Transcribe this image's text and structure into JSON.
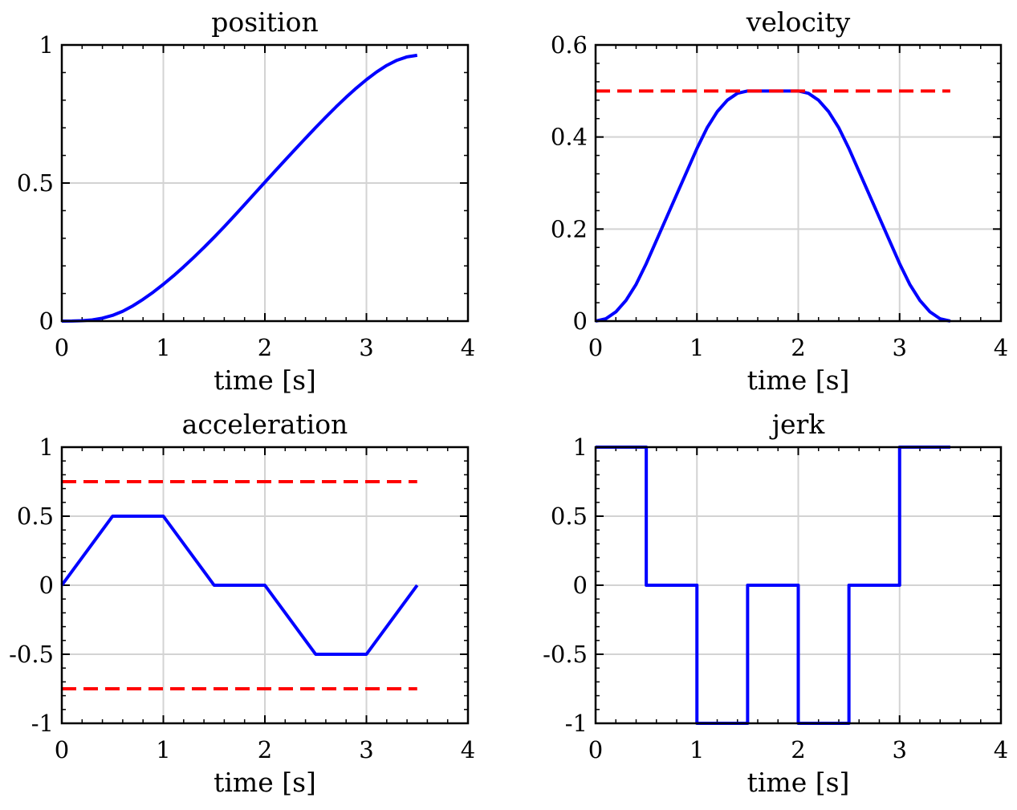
{
  "figure": {
    "colors": {
      "curve": "#0000ff",
      "limit": "#ff0000",
      "grid": "#d3d3d3",
      "axes": "#000000"
    }
  },
  "chart_data": [
    {
      "type": "line",
      "title": "position",
      "xlabel": "time [s]",
      "ylabel": "",
      "xlim": [
        0,
        4
      ],
      "ylim": [
        0,
        1
      ],
      "xticks": [
        0,
        1,
        2,
        3,
        4
      ],
      "xtick_labels": [
        "0",
        "1",
        "2",
        "3",
        "4"
      ],
      "yticks": [
        0,
        0.5,
        1
      ],
      "ytick_labels": [
        "0",
        "0.5",
        "1"
      ],
      "grid": true,
      "series": [
        {
          "name": "position",
          "style": "solid",
          "color": "#0000ff",
          "x": [
            0,
            0.1,
            0.2,
            0.3,
            0.4,
            0.5,
            0.6,
            0.7,
            0.8,
            0.9,
            1.0,
            1.1,
            1.2,
            1.3,
            1.4,
            1.5,
            1.6,
            1.7,
            1.8,
            1.9,
            2.0,
            2.1,
            2.2,
            2.3,
            2.4,
            2.5,
            2.6,
            2.7,
            2.8,
            2.9,
            3.0,
            3.1,
            3.2,
            3.3,
            3.4,
            3.5
          ],
          "y": [
            0,
            0.0002,
            0.0013,
            0.0045,
            0.0107,
            0.0208,
            0.0357,
            0.0553,
            0.0787,
            0.1048,
            0.1333,
            0.164,
            0.1967,
            0.231,
            0.2667,
            0.3036,
            0.3419,
            0.3814,
            0.4218,
            0.4624,
            0.503,
            0.5433,
            0.5833,
            0.6229,
            0.6621,
            0.7008,
            0.7387,
            0.7755,
            0.8106,
            0.8436,
            0.8743,
            0.9021,
            0.9259,
            0.9445,
            0.9569,
            0.9625
          ]
        }
      ]
    },
    {
      "type": "line",
      "title": "velocity",
      "xlabel": "time [s]",
      "ylabel": "",
      "xlim": [
        0,
        4
      ],
      "ylim": [
        0,
        0.6
      ],
      "xticks": [
        0,
        1,
        2,
        3,
        4
      ],
      "xtick_labels": [
        "0",
        "1",
        "2",
        "3",
        "4"
      ],
      "yticks": [
        0,
        0.2,
        0.4,
        0.6
      ],
      "ytick_labels": [
        "0",
        "0.2",
        "0.4",
        "0.6"
      ],
      "grid": true,
      "series": [
        {
          "name": "velocity",
          "style": "solid",
          "color": "#0000ff",
          "x": [
            0,
            0.1,
            0.2,
            0.3,
            0.4,
            0.5,
            0.6,
            0.7,
            0.8,
            0.9,
            1.0,
            1.1,
            1.2,
            1.3,
            1.4,
            1.5,
            2.0,
            2.1,
            2.2,
            2.3,
            2.4,
            2.5,
            2.6,
            2.7,
            2.8,
            2.9,
            3.0,
            3.1,
            3.2,
            3.3,
            3.4,
            3.5
          ],
          "y": [
            0,
            0.005,
            0.02,
            0.045,
            0.08,
            0.125,
            0.175,
            0.225,
            0.275,
            0.325,
            0.375,
            0.42,
            0.455,
            0.48,
            0.495,
            0.5,
            0.5,
            0.495,
            0.48,
            0.455,
            0.42,
            0.375,
            0.325,
            0.275,
            0.225,
            0.175,
            0.125,
            0.08,
            0.045,
            0.02,
            0.005,
            0
          ]
        },
        {
          "name": "velocity limit",
          "style": "dashed",
          "color": "#ff0000",
          "x": [
            0,
            3.5
          ],
          "y": [
            0.5,
            0.5
          ]
        }
      ]
    },
    {
      "type": "line",
      "title": "acceleration",
      "xlabel": "time [s]",
      "ylabel": "",
      "xlim": [
        0,
        4
      ],
      "ylim": [
        -1,
        1
      ],
      "xticks": [
        0,
        1,
        2,
        3,
        4
      ],
      "xtick_labels": [
        "0",
        "1",
        "2",
        "3",
        "4"
      ],
      "yticks": [
        -1,
        -0.5,
        0,
        0.5,
        1
      ],
      "ytick_labels": [
        "-1",
        "-0.5",
        "0",
        "0.5",
        "1"
      ],
      "grid": true,
      "series": [
        {
          "name": "acceleration",
          "style": "solid",
          "color": "#0000ff",
          "x": [
            0,
            0.5,
            1.0,
            1.5,
            2.0,
            2.5,
            3.0,
            3.5
          ],
          "y": [
            0,
            0.5,
            0.5,
            0,
            0,
            -0.5,
            -0.5,
            0
          ]
        },
        {
          "name": "acceleration upper limit",
          "style": "dashed",
          "color": "#ff0000",
          "x": [
            0,
            3.5
          ],
          "y": [
            0.75,
            0.75
          ]
        },
        {
          "name": "acceleration lower limit",
          "style": "dashed",
          "color": "#ff0000",
          "x": [
            0,
            3.5
          ],
          "y": [
            -0.75,
            -0.75
          ]
        }
      ]
    },
    {
      "type": "line",
      "title": "jerk",
      "xlabel": "time [s]",
      "ylabel": "",
      "xlim": [
        0,
        4
      ],
      "ylim": [
        -1,
        1
      ],
      "xticks": [
        0,
        1,
        2,
        3,
        4
      ],
      "xtick_labels": [
        "0",
        "1",
        "2",
        "3",
        "4"
      ],
      "yticks": [
        -1,
        -0.5,
        0,
        0.5,
        1
      ],
      "ytick_labels": [
        "-1",
        "-0.5",
        "0",
        "0.5",
        "1"
      ],
      "grid": true,
      "series": [
        {
          "name": "jerk",
          "style": "step",
          "color": "#0000ff",
          "x": [
            0,
            0.5,
            0.5,
            1.0,
            1.0,
            1.5,
            1.5,
            2.0,
            2.0,
            2.5,
            2.5,
            3.0,
            3.0,
            3.5
          ],
          "y": [
            1,
            1,
            0,
            0,
            -1,
            -1,
            0,
            0,
            -1,
            -1,
            0,
            0,
            1,
            1
          ]
        }
      ]
    }
  ]
}
